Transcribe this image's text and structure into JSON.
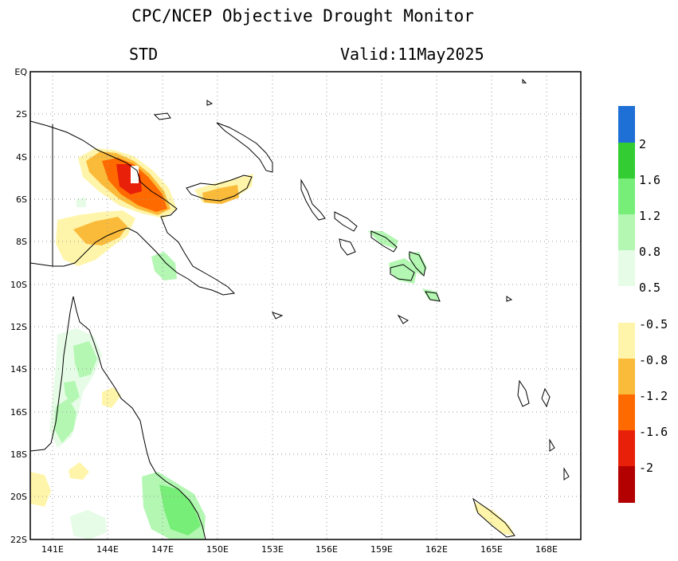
{
  "title": "CPC/NCEP Objective Drought Monitor",
  "subtitle_left": "STD",
  "subtitle_right": "Valid:11May2025",
  "map": {
    "lat_labels": [
      "EQ",
      "2S",
      "4S",
      "6S",
      "8S",
      "10S",
      "12S",
      "14S",
      "16S",
      "18S",
      "20S",
      "22S"
    ],
    "lon_labels": [
      "141E",
      "144E",
      "147E",
      "150E",
      "153E",
      "156E",
      "159E",
      "162E",
      "165E",
      "168E"
    ],
    "lon_range": [
      139.7,
      169.7
    ],
    "lat_range": [
      0,
      -22
    ],
    "grid": "dotted"
  },
  "colorbar_wet": [
    {
      "label": "2",
      "color": "#1e6fd6"
    },
    {
      "label": "1.6",
      "color": "#33cc33"
    },
    {
      "label": "1.2",
      "color": "#77ee77"
    },
    {
      "label": "0.8",
      "color": "#b3f7b3"
    },
    {
      "label": "0.5",
      "color": "#e6fce6"
    }
  ],
  "colorbar_wet_top_color": "#1e6fd6",
  "colorbar_dry": [
    {
      "label": "-0.5",
      "color": "#fff5aa"
    },
    {
      "label": "-0.8",
      "color": "#fbbb3a"
    },
    {
      "label": "-1.2",
      "color": "#ff6a00"
    },
    {
      "label": "-1.6",
      "color": "#e8200a"
    },
    {
      "label": "-2",
      "color": "#b30000"
    }
  ]
}
